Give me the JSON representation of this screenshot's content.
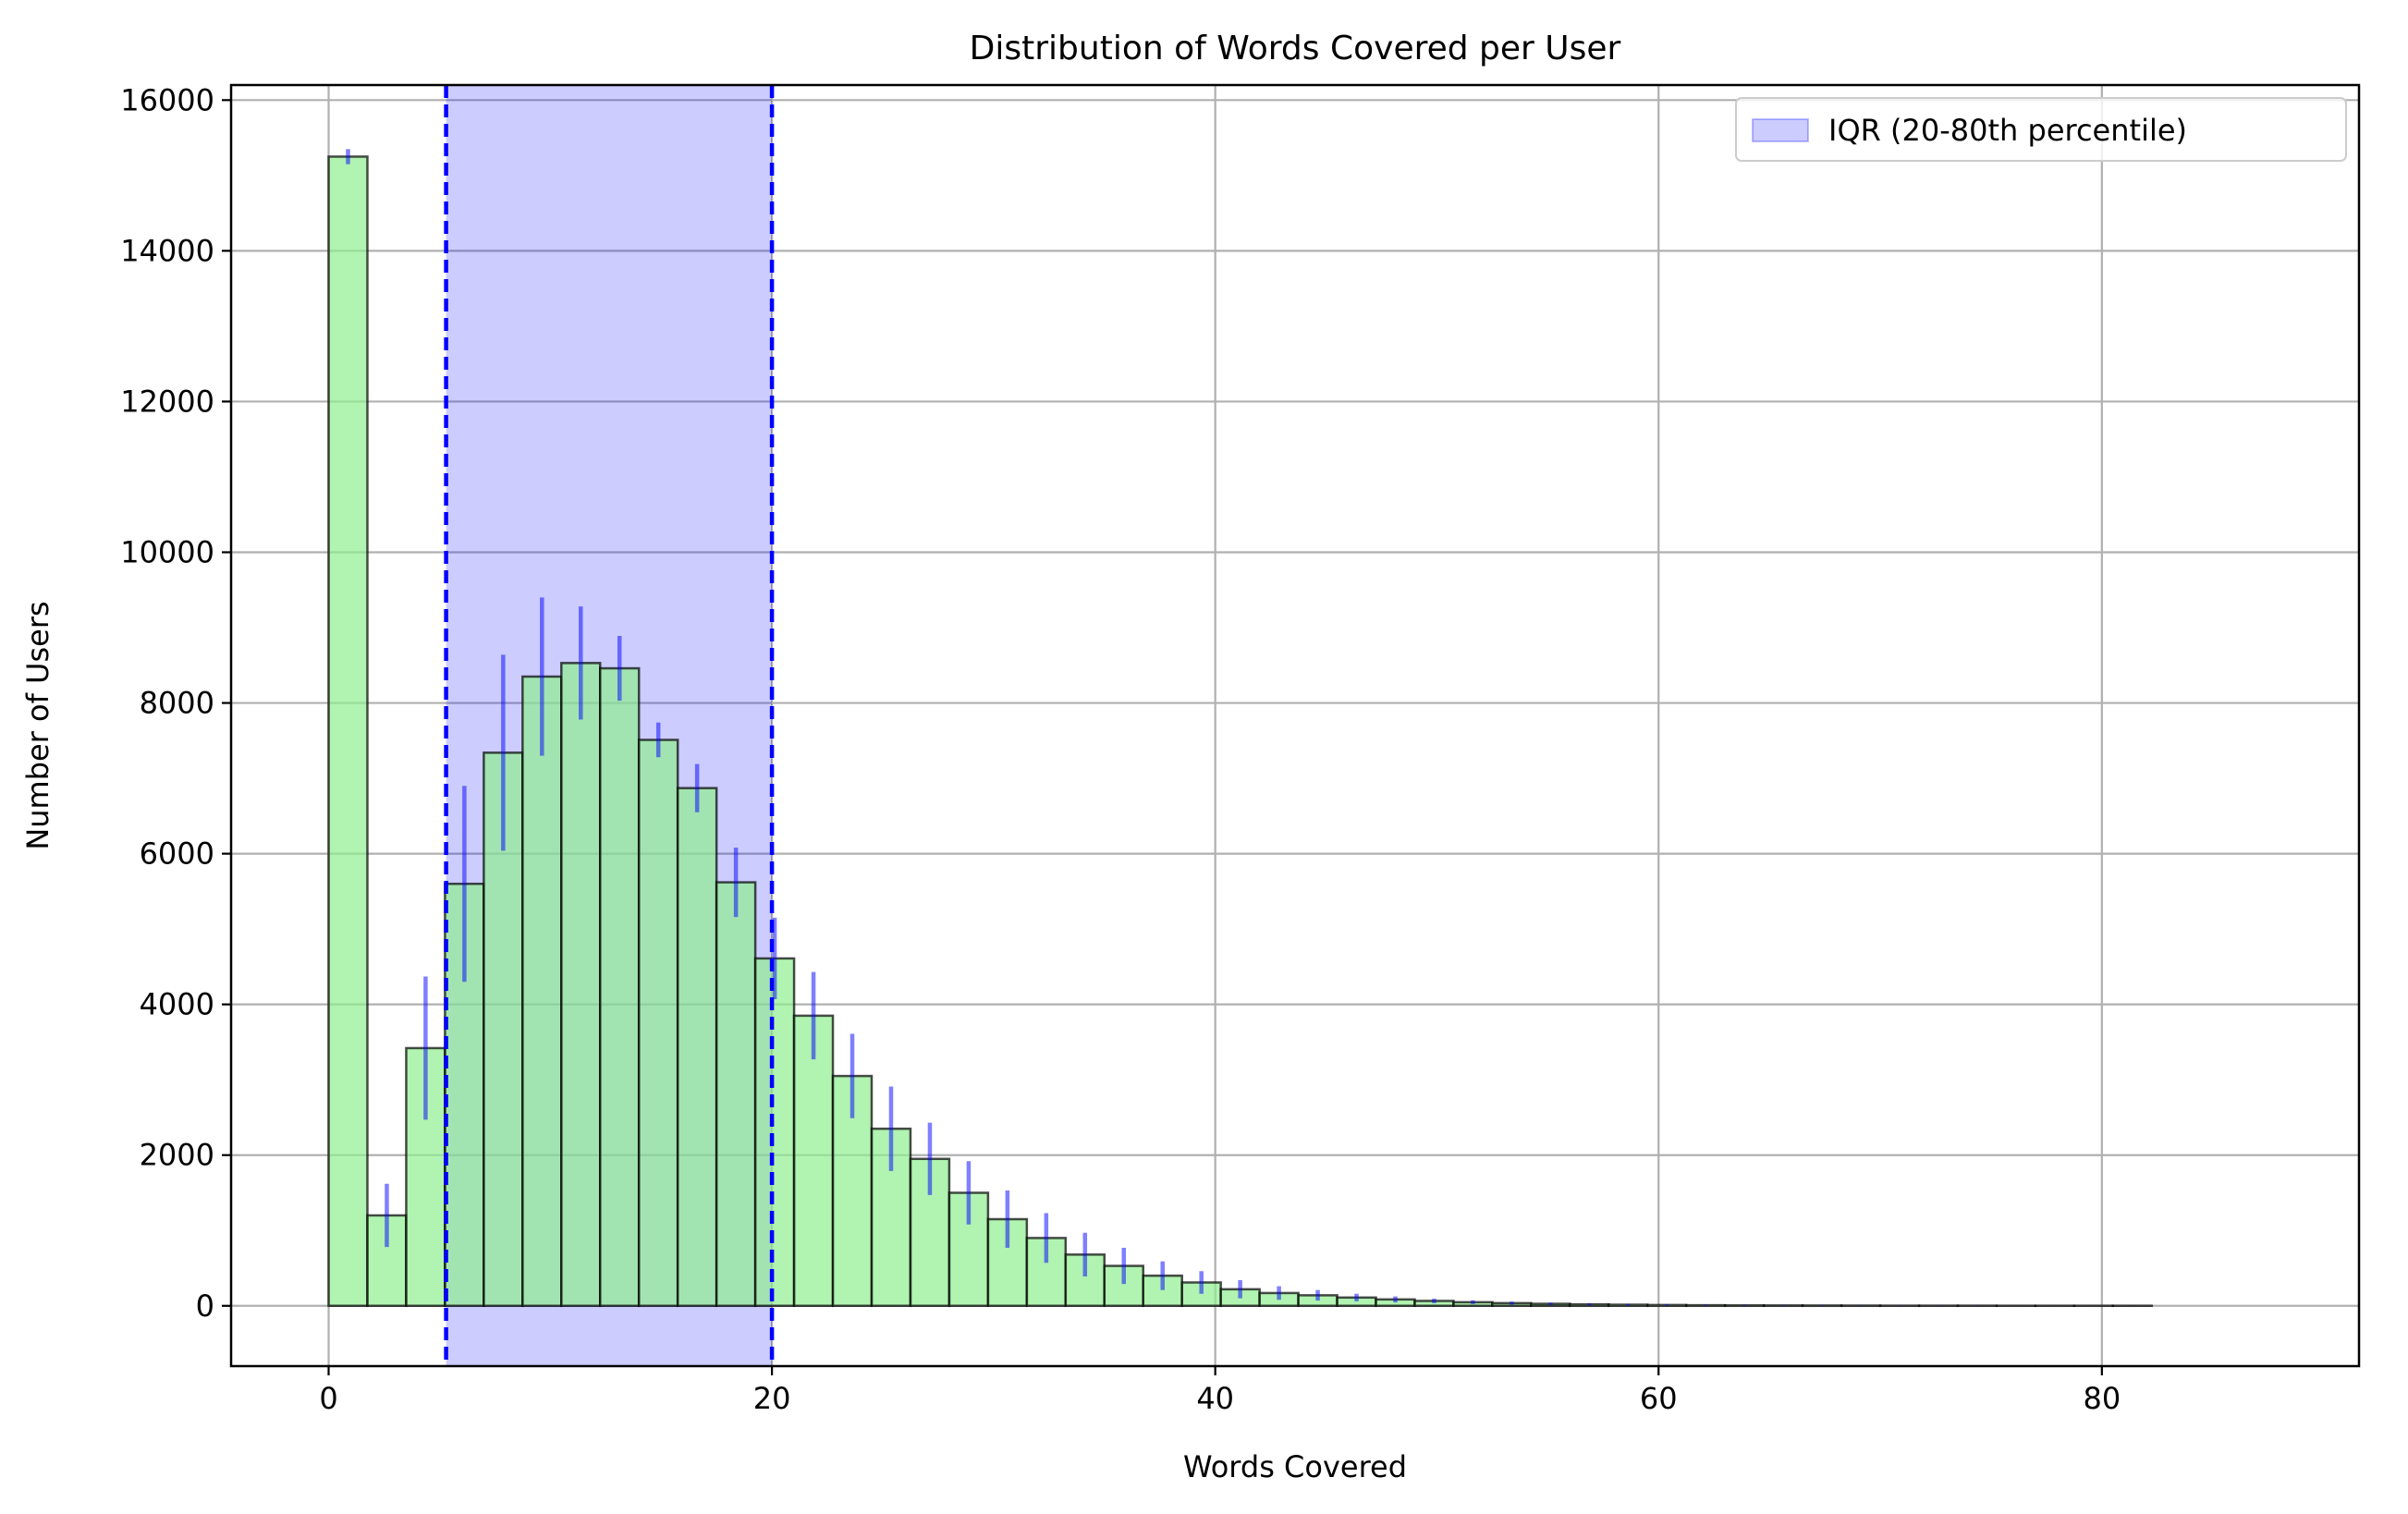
{
  "chart_data": {
    "type": "bar",
    "title": "Distribution of Words Covered per User",
    "xlabel": "Words Covered",
    "ylabel": "Number of Users",
    "xlim": [
      -4.4,
      91.6
    ],
    "ylim": [
      -800,
      16200
    ],
    "xticks": [
      0,
      20,
      40,
      60,
      80
    ],
    "yticks": [
      0,
      2000,
      4000,
      6000,
      8000,
      10000,
      12000,
      14000,
      16000
    ],
    "grid": true,
    "bin_edges": [
      0,
      1.75,
      3.5,
      5.25,
      7,
      8.75,
      10.5,
      12.25,
      14,
      15.75,
      17.5,
      19.25,
      21,
      22.75,
      24.5,
      26.25,
      28,
      29.75,
      31.5,
      33.25,
      35,
      36.75,
      38.5,
      40.25,
      42,
      43.75,
      45.5,
      47.25,
      49,
      50.75,
      52.5,
      54.25,
      56,
      57.75,
      59.5,
      61.25,
      63,
      64.75,
      66.5,
      68.25,
      70,
      71.75,
      73.5,
      75.25,
      77,
      78.75,
      80.5,
      82.25,
      84,
      85.75,
      87.5
    ],
    "values": [
      15250,
      1200,
      3420,
      5600,
      7340,
      8350,
      8530,
      8460,
      7510,
      6870,
      5620,
      4610,
      3850,
      3050,
      2350,
      1950,
      1500,
      1150,
      900,
      680,
      530,
      400,
      310,
      220,
      170,
      140,
      110,
      85,
      65,
      48,
      36,
      27,
      20,
      15,
      11,
      8,
      6,
      5,
      4,
      3,
      2,
      2,
      2,
      1,
      1,
      1,
      1,
      0,
      0,
      0
    ],
    "error_half": [
      100,
      420,
      950,
      1300,
      1300,
      1050,
      750,
      430,
      230,
      320,
      460,
      540,
      580,
      560,
      560,
      480,
      420,
      380,
      330,
      290,
      240,
      190,
      150,
      120,
      90,
      70,
      50,
      40,
      30,
      25,
      20,
      15,
      12,
      10,
      8,
      6,
      5,
      4,
      3,
      3,
      2,
      2,
      2,
      1,
      1,
      1,
      1,
      0,
      0,
      0
    ],
    "bar_color": "#90ee90",
    "bar_edge_color": "#000000",
    "error_color": "#0000ff",
    "iqr": {
      "low": 5.3,
      "high": 20,
      "color": "#0000ff",
      "legend": "IQR (20-80th percentile)"
    },
    "legend_position": "top-right"
  }
}
